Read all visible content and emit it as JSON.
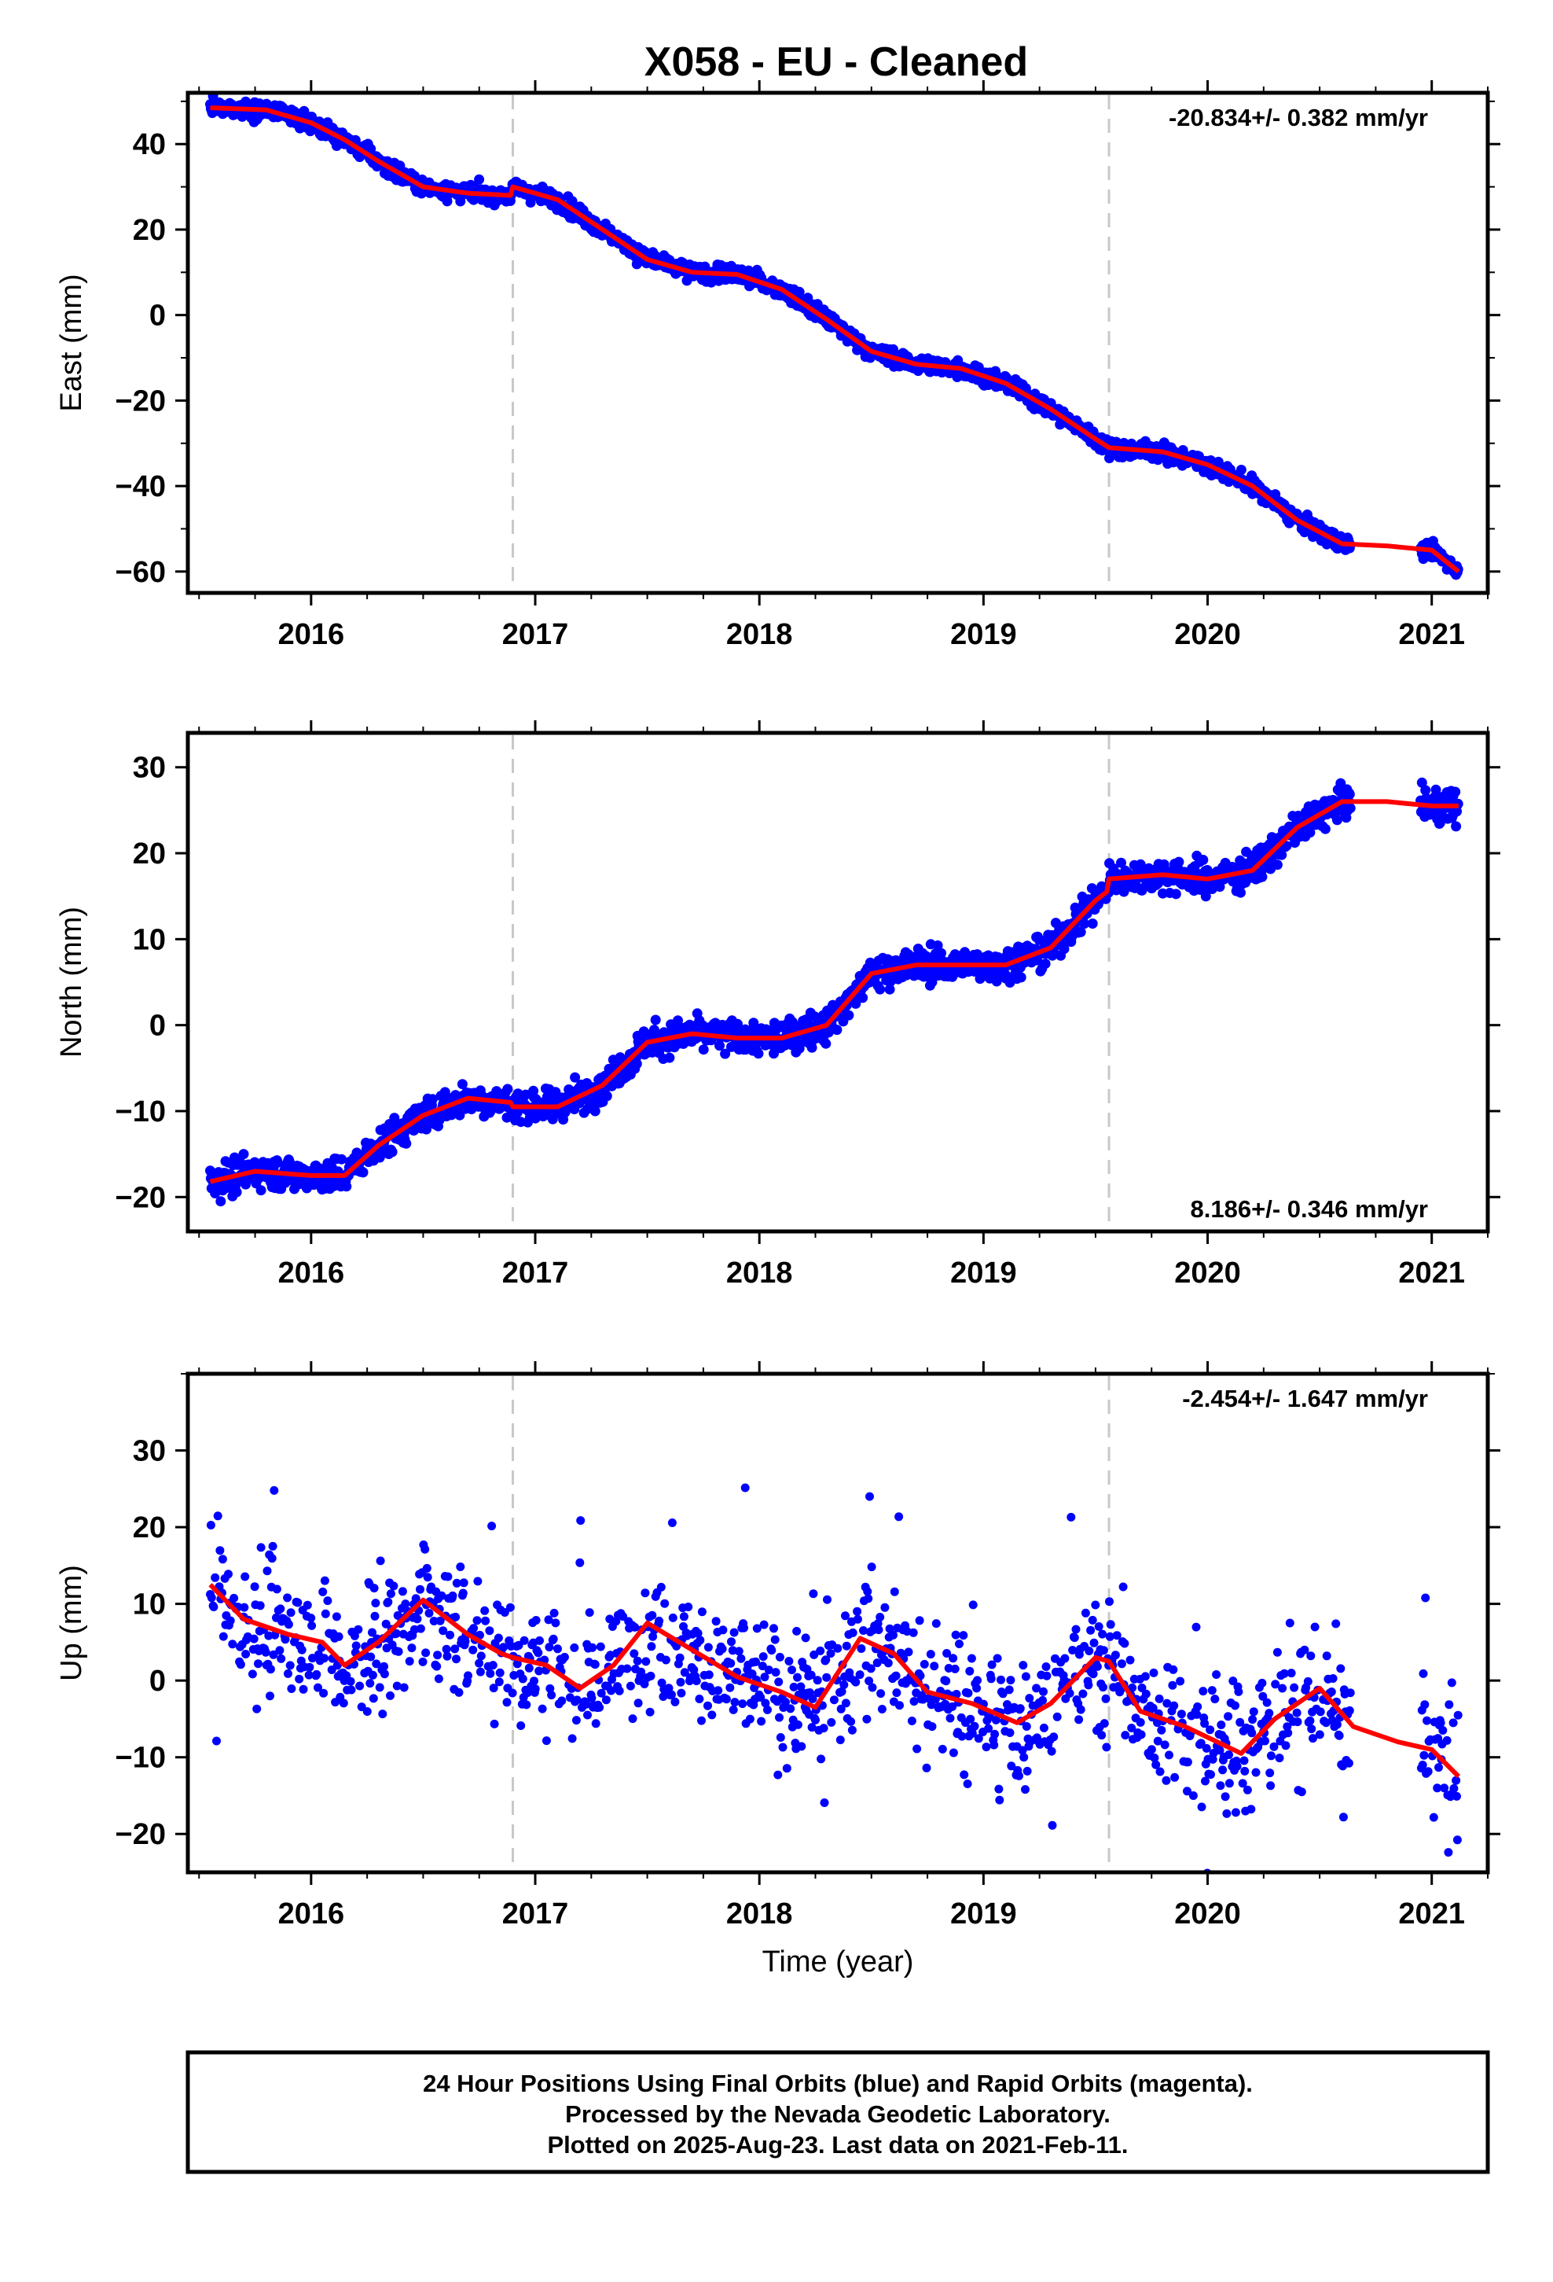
{
  "chart_data": {
    "type": "scatter",
    "title": "X058  - EU - Cleaned",
    "xlabel": "Time (year)",
    "xlim": [
      2015.45,
      2021.25
    ],
    "x_ticks": [
      "2016",
      "2017",
      "2018",
      "2019",
      "2020",
      "2021"
    ],
    "x_tick_values": [
      2016,
      2017,
      2018,
      2019,
      2020,
      2021
    ],
    "equipment_change_years": [
      2016.9,
      2019.56
    ],
    "colors": {
      "points": "#0000ff",
      "fit": "#ff0000",
      "breaks": "#c8c8c8"
    },
    "series_desc": {
      "points": "24 hour positions (blue dots)",
      "fit": "model fit (red line)"
    },
    "panels": [
      {
        "ylabel": "East (mm)",
        "ylim": [
          -65,
          52
        ],
        "y_ticks": [
          "40",
          "20",
          "0",
          "−20",
          "−40",
          "−60"
        ],
        "y_tick_values": [
          40,
          20,
          0,
          -20,
          -40,
          -60
        ],
        "rate_label": "-20.834+/- 0.382 mm/yr",
        "rate_position": "top-right",
        "fit": {
          "x": [
            2015.55,
            2015.8,
            2016.0,
            2016.15,
            2016.3,
            2016.5,
            2016.7,
            2016.89,
            2016.9,
            2017.1,
            2017.3,
            2017.5,
            2017.7,
            2017.9,
            2018.1,
            2018.3,
            2018.5,
            2018.7,
            2018.9,
            2019.1,
            2019.3,
            2019.5,
            2019.56,
            2019.8,
            2020.0,
            2020.2,
            2020.4,
            2020.6,
            2020.8,
            2021.0,
            2021.12
          ],
          "y": [
            48.5,
            48,
            45,
            41,
            36,
            30,
            28.5,
            28,
            30,
            27,
            20,
            13,
            10,
            9.5,
            6,
            -1,
            -8.5,
            -11.5,
            -12.5,
            -16,
            -22,
            -29,
            -31,
            -32,
            -35,
            -40,
            -48,
            -53.5,
            -54,
            -55,
            -60
          ]
        },
        "points_summary": {
          "count": "approx. 1800",
          "scatter_mm": 1.5,
          "gaps": [
            [
              2020.64,
              2020.95
            ]
          ]
        }
      },
      {
        "ylabel": "North (mm)",
        "ylim": [
          -24,
          34
        ],
        "y_ticks": [
          "30",
          "20",
          "10",
          "0",
          "−10",
          "−20"
        ],
        "y_tick_values": [
          30,
          20,
          10,
          0,
          -10,
          -20
        ],
        "rate_label": "8.186+/- 0.346 mm/yr",
        "rate_position": "bottom-right",
        "fit": {
          "x": [
            2015.55,
            2015.75,
            2016.0,
            2016.15,
            2016.3,
            2016.5,
            2016.7,
            2016.89,
            2016.9,
            2017.1,
            2017.3,
            2017.5,
            2017.7,
            2017.9,
            2018.1,
            2018.3,
            2018.5,
            2018.7,
            2018.9,
            2019.1,
            2019.3,
            2019.5,
            2019.55,
            2019.56,
            2019.8,
            2020.0,
            2020.2,
            2020.4,
            2020.6,
            2020.8,
            2021.0,
            2021.12
          ],
          "y": [
            -18.2,
            -17,
            -17.5,
            -17.5,
            -14,
            -10.5,
            -8.5,
            -9,
            -9.5,
            -9.5,
            -7,
            -2,
            -1,
            -1.5,
            -1.5,
            0,
            6,
            7,
            7,
            7,
            9,
            14.5,
            15.5,
            17,
            17.5,
            17,
            18,
            23,
            26,
            26,
            25.5,
            25.5
          ]
        },
        "points_summary": {
          "count": "approx. 1800",
          "scatter_mm": 1.5,
          "gaps": [
            [
              2020.64,
              2020.95
            ]
          ]
        }
      },
      {
        "ylabel": "Up (mm)",
        "ylim": [
          -25,
          40
        ],
        "y_ticks": [
          "30",
          "20",
          "10",
          "0",
          "−10",
          "−20"
        ],
        "y_tick_values": [
          30,
          20,
          10,
          0,
          -10,
          -20
        ],
        "rate_label": "-2.454+/- 1.647 mm/yr",
        "rate_position": "top-right",
        "fit": {
          "x": [
            2015.55,
            2015.7,
            2015.9,
            2016.05,
            2016.15,
            2016.3,
            2016.5,
            2016.7,
            2016.85,
            2016.9,
            2017.05,
            2017.2,
            2017.35,
            2017.5,
            2017.7,
            2017.9,
            2018.1,
            2018.25,
            2018.45,
            2018.6,
            2018.75,
            2018.95,
            2019.15,
            2019.3,
            2019.5,
            2019.56,
            2019.7,
            2019.9,
            2020.15,
            2020.3,
            2020.5,
            2020.65,
            2020.85,
            2021.0,
            2021.12
          ],
          "y": [
            12.5,
            8,
            6,
            5,
            2,
            5,
            10.5,
            6,
            3.5,
            3,
            2,
            -1,
            2,
            7.5,
            4,
            0.5,
            -1.5,
            -3.5,
            5.5,
            3.5,
            -1.5,
            -3,
            -5.5,
            -3,
            3,
            2.5,
            -4,
            -6,
            -9.5,
            -5,
            -1,
            -6,
            -8,
            -9,
            -12.5
          ]
        },
        "points_summary": {
          "count": "approx. 1800",
          "scatter_mm": 6,
          "gaps": [
            [
              2020.64,
              2020.95
            ]
          ]
        }
      }
    ],
    "footer_lines": [
      "24 Hour Positions Using Final Orbits (blue) and Rapid Orbits (magenta).",
      "Processed by the Nevada Geodetic Laboratory.",
      "Plotted on 2025-Aug-23. Last data on 2021-Feb-11."
    ]
  }
}
